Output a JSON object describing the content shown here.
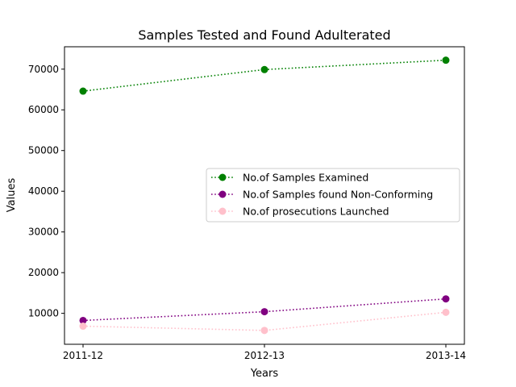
{
  "chart_data": {
    "type": "line",
    "title": "Samples Tested and Found Adulterated",
    "xlabel": "Years",
    "ylabel": "Values",
    "categories": [
      "2011-12",
      "2012-13",
      "2013-14"
    ],
    "ylim": [
      2400,
      75500
    ],
    "yticks": [
      10000,
      20000,
      30000,
      40000,
      50000,
      60000,
      70000
    ],
    "ytick_labels": [
      "10000",
      "20000",
      "30000",
      "40000",
      "50000",
      "60000",
      "70000"
    ],
    "grid": false,
    "legend_position": "center-right",
    "series": [
      {
        "name": "No.of Samples Examined",
        "values": [
          64600,
          69900,
          72200
        ],
        "color": "#008000",
        "marker": "circle",
        "linestyle": "dotted"
      },
      {
        "name": "No.of Samples found Non-Conforming",
        "values": [
          8250,
          10400,
          13550
        ],
        "color": "#800080",
        "marker": "circle",
        "linestyle": "dotted"
      },
      {
        "name": "No.of prosecutions Launched",
        "values": [
          6850,
          5800,
          10250
        ],
        "color": "#ffc0cb",
        "marker": "circle",
        "linestyle": "dotted"
      }
    ]
  }
}
